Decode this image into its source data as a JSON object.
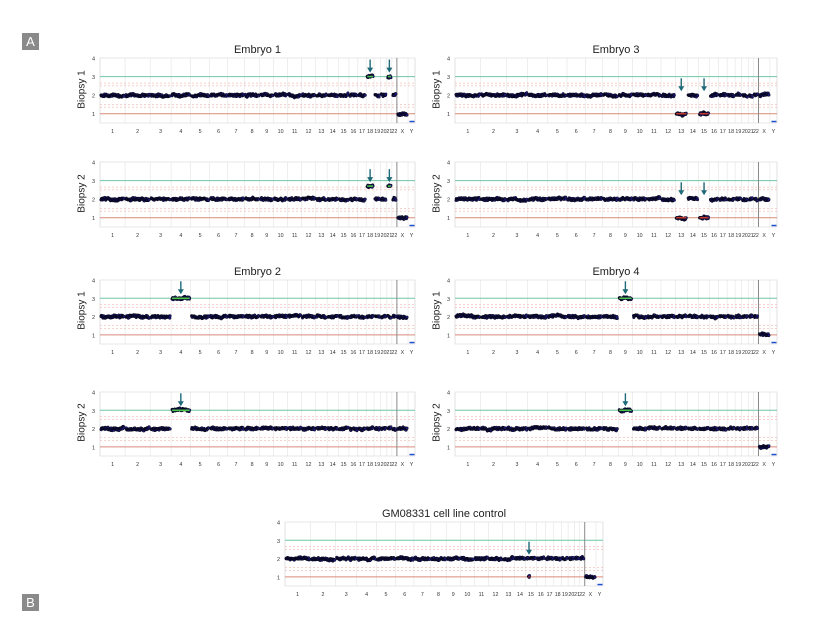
{
  "panel_labels": {
    "a": "A",
    "b": "B"
  },
  "colors": {
    "line3": "#6fc7a4",
    "line1": "#d98a7a",
    "dashed": "#f2b8b0",
    "grid": "#e4e4e4",
    "point": "#1d1a7c",
    "point_edge": "#000000",
    "gain": "#4cc34a",
    "loss": "#c0392b",
    "arrow": "#1e6a78",
    "y_marker": "#1e4fd0",
    "sep": "#8a8a8a"
  },
  "chart_data": [
    {
      "type": "scatter",
      "group": "Embryo 1",
      "title": "Embryo 1",
      "ylabel": "Biopsy 1",
      "ylim": [
        0.5,
        4
      ],
      "yticks": [
        "1",
        "2",
        "3",
        "4"
      ],
      "ref_lines": [
        3,
        1
      ],
      "xticks": [
        "1",
        "2",
        "3",
        "4",
        "5",
        "6",
        "7",
        "8",
        "9",
        "10",
        "11",
        "12",
        "13",
        "14",
        "15",
        "16",
        "17",
        "18",
        "19",
        "20",
        "21",
        "22",
        "X",
        "Y"
      ],
      "baseline": 2,
      "sex_chromosomes": {
        "X": 1,
        "Y": "none"
      },
      "events": [
        {
          "chromosome": "18",
          "copy": 3,
          "arrow": true
        },
        {
          "chromosome": "21",
          "copy": 3,
          "arrow": true
        }
      ]
    },
    {
      "type": "scatter",
      "group": "Embryo 1",
      "title": "",
      "ylabel": "Biopsy 2",
      "ylim": [
        0.5,
        4
      ],
      "yticks": [
        "1",
        "2",
        "3",
        "4"
      ],
      "ref_lines": [
        3,
        1
      ],
      "xticks": [
        "1",
        "2",
        "3",
        "4",
        "5",
        "6",
        "7",
        "8",
        "9",
        "10",
        "11",
        "12",
        "13",
        "14",
        "15",
        "16",
        "17",
        "18",
        "19",
        "20",
        "21",
        "22",
        "X",
        "Y"
      ],
      "baseline": 2,
      "sex_chromosomes": {
        "X": 1,
        "Y": "none"
      },
      "events": [
        {
          "chromosome": "18",
          "copy": 2.7,
          "arrow": true
        },
        {
          "chromosome": "21",
          "copy": 2.7,
          "arrow": true
        }
      ]
    },
    {
      "type": "scatter",
      "group": "Embryo 3",
      "title": "Embryo 3",
      "ylabel": "Biopsy 1",
      "ylim": [
        0.5,
        4
      ],
      "yticks": [
        "1",
        "2",
        "3",
        "4"
      ],
      "ref_lines": [
        3,
        1
      ],
      "xticks": [
        "1",
        "2",
        "3",
        "4",
        "5",
        "6",
        "7",
        "8",
        "9",
        "10",
        "11",
        "12",
        "13",
        "14",
        "15",
        "16",
        "17",
        "18",
        "19",
        "20",
        "21",
        "22",
        "X",
        "Y"
      ],
      "baseline": 2,
      "sex_chromosomes": {
        "X": 2,
        "Y": "none"
      },
      "events": [
        {
          "chromosome": "13",
          "copy": 1,
          "arrow": true
        },
        {
          "chromosome": "15",
          "copy": 1,
          "arrow": true
        }
      ]
    },
    {
      "type": "scatter",
      "group": "Embryo 3",
      "title": "",
      "ylabel": "Biopsy 2",
      "ylim": [
        0.5,
        4
      ],
      "yticks": [
        "1",
        "2",
        "3",
        "4"
      ],
      "ref_lines": [
        3,
        1
      ],
      "xticks": [
        "1",
        "2",
        "3",
        "4",
        "5",
        "6",
        "7",
        "8",
        "9",
        "10",
        "11",
        "12",
        "13",
        "14",
        "15",
        "16",
        "17",
        "18",
        "19",
        "20",
        "21",
        "22",
        "X",
        "Y"
      ],
      "baseline": 2,
      "sex_chromosomes": {
        "X": 2,
        "Y": "none"
      },
      "events": [
        {
          "chromosome": "13",
          "copy": 1,
          "arrow": true
        },
        {
          "chromosome": "15",
          "copy": 1,
          "arrow": true
        }
      ]
    },
    {
      "type": "scatter",
      "group": "Embryo 2",
      "title": "Embryo 2",
      "ylabel": "Biopsy 1",
      "ylim": [
        0.5,
        4
      ],
      "yticks": [
        "1",
        "2",
        "3",
        "4"
      ],
      "ref_lines": [
        3,
        1
      ],
      "xticks": [
        "1",
        "2",
        "3",
        "4",
        "5",
        "6",
        "7",
        "8",
        "9",
        "10",
        "11",
        "12",
        "13",
        "14",
        "15",
        "16",
        "17",
        "18",
        "19",
        "20",
        "21",
        "22",
        "X",
        "Y"
      ],
      "baseline": 2,
      "sex_chromosomes": {
        "X": 2,
        "Y": "none"
      },
      "events": [
        {
          "chromosome": "4",
          "copy": 3,
          "arrow": true
        }
      ]
    },
    {
      "type": "scatter",
      "group": "Embryo 2",
      "title": "",
      "ylabel": "Biopsy 2",
      "ylim": [
        0.5,
        4
      ],
      "yticks": [
        "1",
        "2",
        "3",
        "4"
      ],
      "ref_lines": [
        3,
        1
      ],
      "xticks": [
        "1",
        "2",
        "3",
        "4",
        "5",
        "6",
        "7",
        "8",
        "9",
        "10",
        "11",
        "12",
        "13",
        "14",
        "15",
        "16",
        "17",
        "18",
        "19",
        "20",
        "21",
        "22",
        "X",
        "Y"
      ],
      "baseline": 2,
      "sex_chromosomes": {
        "X": 2,
        "Y": "none"
      },
      "events": [
        {
          "chromosome": "4",
          "copy": 3,
          "arrow": true
        }
      ]
    },
    {
      "type": "scatter",
      "group": "Embryo 4",
      "title": "Embryo 4",
      "ylabel": "Biopsy 1",
      "ylim": [
        0.5,
        4
      ],
      "yticks": [
        "1",
        "2",
        "3",
        "4"
      ],
      "ref_lines": [
        3,
        1
      ],
      "xticks": [
        "1",
        "2",
        "3",
        "4",
        "5",
        "6",
        "7",
        "8",
        "9",
        "10",
        "11",
        "12",
        "13",
        "14",
        "15",
        "16",
        "17",
        "18",
        "19",
        "20",
        "21",
        "22",
        "X",
        "Y"
      ],
      "baseline": 2,
      "sex_chromosomes": {
        "X": 1,
        "Y": "none"
      },
      "events": [
        {
          "chromosome": "9",
          "copy": 3,
          "arrow": true
        }
      ]
    },
    {
      "type": "scatter",
      "group": "Embryo 4",
      "title": "",
      "ylabel": "Biopsy 2",
      "ylim": [
        0.5,
        4
      ],
      "yticks": [
        "1",
        "2",
        "3",
        "4"
      ],
      "ref_lines": [
        3,
        1
      ],
      "xticks": [
        "1",
        "2",
        "3",
        "4",
        "5",
        "6",
        "7",
        "8",
        "9",
        "10",
        "11",
        "12",
        "13",
        "14",
        "15",
        "16",
        "17",
        "18",
        "19",
        "20",
        "21",
        "22",
        "X",
        "Y"
      ],
      "baseline": 2,
      "sex_chromosomes": {
        "X": 1,
        "Y": "none"
      },
      "events": [
        {
          "chromosome": "9",
          "copy": 3,
          "arrow": true
        }
      ]
    },
    {
      "type": "scatter",
      "group": "GM08331 cell line control",
      "title": "GM08331 cell line control",
      "ylabel": "",
      "ylim": [
        0.5,
        4
      ],
      "yticks": [
        "1",
        "2",
        "3",
        "4"
      ],
      "ref_lines": [
        3,
        1
      ],
      "xticks": [
        "1",
        "2",
        "3",
        "4",
        "5",
        "6",
        "7",
        "8",
        "9",
        "10",
        "11",
        "12",
        "13",
        "14",
        "15",
        "16",
        "17",
        "18",
        "19",
        "20",
        "21",
        "22",
        "X",
        "Y"
      ],
      "baseline": 2,
      "sex_chromosomes": {
        "X": 1,
        "Y": "none"
      },
      "events": [
        {
          "chromosome": "15",
          "copy": 1,
          "arrow": true,
          "partial": true
        }
      ]
    }
  ]
}
